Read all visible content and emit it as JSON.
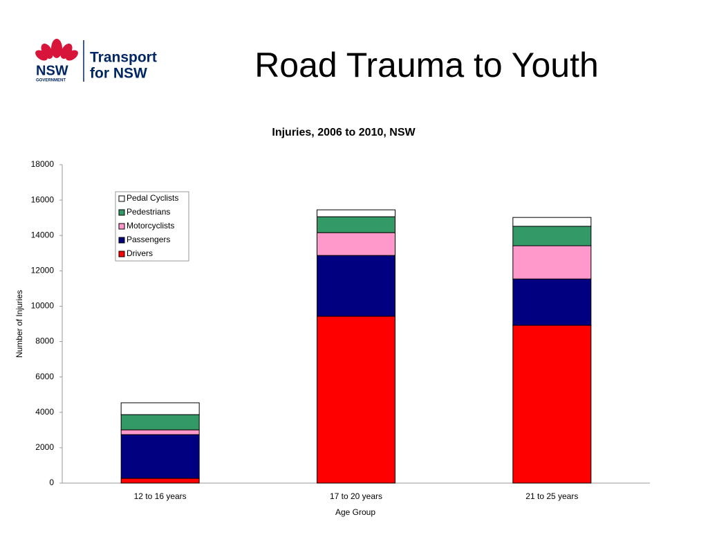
{
  "logo": {
    "brand": "NSW",
    "sub": "GOVERNMENT",
    "line1": "Transport",
    "line2": "for NSW"
  },
  "slide": {
    "title": "Road Trauma to Youth"
  },
  "chart_data": {
    "type": "stacked-bar",
    "title": "Injuries, 2006 to 2010, NSW",
    "x_label": "Age Group",
    "y_label": "Number of Injuries",
    "categories": [
      "12 to 16 years",
      "17 to 20 years",
      "21 to 25 years"
    ],
    "series": [
      {
        "name": "Drivers",
        "color": "#ff0000",
        "values": [
          270,
          9430,
          8920
        ]
      },
      {
        "name": "Passengers",
        "color": "#000080",
        "values": [
          2470,
          3440,
          2620
        ]
      },
      {
        "name": "Motorcyclists",
        "color": "#ff99cc",
        "values": [
          270,
          1290,
          1880
        ]
      },
      {
        "name": "Pedestrians",
        "color": "#339966",
        "values": [
          860,
          900,
          1100
        ]
      },
      {
        "name": "Pedal Cyclists",
        "color": "#ffffff",
        "values": [
          670,
          390,
          500
        ]
      }
    ],
    "ylim": [
      0,
      18000
    ],
    "yticks": [
      0,
      2000,
      4000,
      6000,
      8000,
      10000,
      12000,
      14000,
      16000,
      18000
    ],
    "grid": false,
    "legend": "top-left"
  }
}
